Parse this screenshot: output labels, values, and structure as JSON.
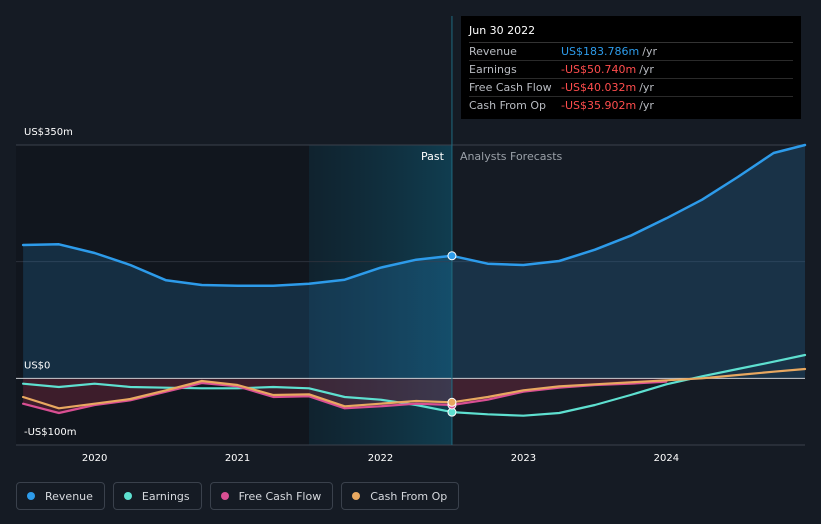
{
  "tooltip": {
    "date": "Jun 30 2022",
    "rows": [
      {
        "label": "Revenue",
        "value": "US$183.786m",
        "unit": "/yr"
      },
      {
        "label": "Earnings",
        "value": "-US$50.740m",
        "unit": "/yr"
      },
      {
        "label": "Free Cash Flow",
        "value": "-US$40.032m",
        "unit": "/yr"
      },
      {
        "label": "Cash From Op",
        "value": "-US$35.902m",
        "unit": "/yr"
      }
    ]
  },
  "legend": [
    {
      "label": "Revenue",
      "color": "#2d9bea"
    },
    {
      "label": "Earnings",
      "color": "#5ee0d0"
    },
    {
      "label": "Free Cash Flow",
      "color": "#d94f93"
    },
    {
      "label": "Cash From Op",
      "color": "#e8a860"
    }
  ],
  "chart_data": {
    "type": "line",
    "y_axis_labels": [
      "US$350m",
      "US$0",
      "-US$100m"
    ],
    "ylim": [
      -100,
      350
    ],
    "xlim": [
      2019.45,
      2024.97
    ],
    "x_tick_labels": [
      "2020",
      "2021",
      "2022",
      "2023",
      "2024"
    ],
    "x_ticks": [
      2020,
      2021,
      2022,
      2023,
      2024
    ],
    "past_label": "Past",
    "forecast_label": "Analysts Forecasts",
    "divider_x": 2022.5,
    "shaded_start_x": 2021.5,
    "series": [
      {
        "name": "Revenue",
        "color": "#2d9bea",
        "points": [
          [
            2019.5,
            200
          ],
          [
            2019.75,
            201
          ],
          [
            2020.0,
            188
          ],
          [
            2020.25,
            170
          ],
          [
            2020.5,
            147
          ],
          [
            2020.75,
            140
          ],
          [
            2021.0,
            139
          ],
          [
            2021.25,
            139
          ],
          [
            2021.5,
            142
          ],
          [
            2021.75,
            148
          ],
          [
            2022.0,
            166
          ],
          [
            2022.25,
            178
          ],
          [
            2022.5,
            183.8
          ],
          [
            2022.75,
            172
          ],
          [
            2023.0,
            170
          ],
          [
            2023.25,
            176
          ],
          [
            2023.5,
            193
          ],
          [
            2023.75,
            214
          ],
          [
            2024.0,
            240
          ],
          [
            2024.25,
            268
          ],
          [
            2024.5,
            302
          ],
          [
            2024.75,
            338
          ],
          [
            2024.97,
            350
          ]
        ]
      },
      {
        "name": "Earnings",
        "color": "#5ee0d0",
        "points": [
          [
            2019.5,
            -8
          ],
          [
            2019.75,
            -13
          ],
          [
            2020.0,
            -8
          ],
          [
            2020.25,
            -13
          ],
          [
            2020.5,
            -14
          ],
          [
            2020.75,
            -15
          ],
          [
            2021.0,
            -15
          ],
          [
            2021.25,
            -13
          ],
          [
            2021.5,
            -15
          ],
          [
            2021.75,
            -28
          ],
          [
            2022.0,
            -32
          ],
          [
            2022.25,
            -40
          ],
          [
            2022.5,
            -50.7
          ],
          [
            2022.75,
            -54
          ],
          [
            2023.0,
            -56
          ],
          [
            2023.25,
            -52
          ],
          [
            2023.5,
            -40
          ],
          [
            2023.75,
            -25
          ],
          [
            2024.0,
            -9
          ],
          [
            2024.25,
            3
          ],
          [
            2024.5,
            14
          ],
          [
            2024.75,
            25
          ],
          [
            2024.97,
            35
          ]
        ]
      },
      {
        "name": "Free Cash Flow",
        "color": "#d94f93",
        "points": [
          [
            2019.5,
            -38
          ],
          [
            2019.75,
            -52
          ],
          [
            2020.0,
            -40
          ],
          [
            2020.25,
            -33
          ],
          [
            2020.5,
            -20
          ],
          [
            2020.75,
            -7
          ],
          [
            2021.0,
            -12
          ],
          [
            2021.25,
            -28
          ],
          [
            2021.5,
            -27
          ],
          [
            2021.75,
            -45
          ],
          [
            2022.0,
            -42
          ],
          [
            2022.25,
            -38
          ],
          [
            2022.5,
            -40
          ],
          [
            2022.75,
            -32
          ],
          [
            2023.0,
            -20
          ],
          [
            2023.25,
            -14
          ],
          [
            2023.5,
            -10
          ],
          [
            2023.75,
            -8
          ],
          [
            2024.0,
            -5
          ]
        ]
      },
      {
        "name": "Cash From Op",
        "color": "#e8a860",
        "points": [
          [
            2019.5,
            -28
          ],
          [
            2019.75,
            -45
          ],
          [
            2020.0,
            -38
          ],
          [
            2020.25,
            -31
          ],
          [
            2020.5,
            -18
          ],
          [
            2020.75,
            -4
          ],
          [
            2021.0,
            -10
          ],
          [
            2021.25,
            -25
          ],
          [
            2021.5,
            -24
          ],
          [
            2021.75,
            -42
          ],
          [
            2022.0,
            -38
          ],
          [
            2022.25,
            -34
          ],
          [
            2022.5,
            -35.9
          ],
          [
            2022.75,
            -28
          ],
          [
            2023.0,
            -18
          ],
          [
            2023.25,
            -12
          ],
          [
            2023.5,
            -9
          ],
          [
            2023.75,
            -6
          ],
          [
            2024.0,
            -3
          ],
          [
            2024.25,
            0
          ],
          [
            2024.5,
            5
          ],
          [
            2024.75,
            10
          ],
          [
            2024.97,
            14
          ]
        ]
      }
    ]
  }
}
